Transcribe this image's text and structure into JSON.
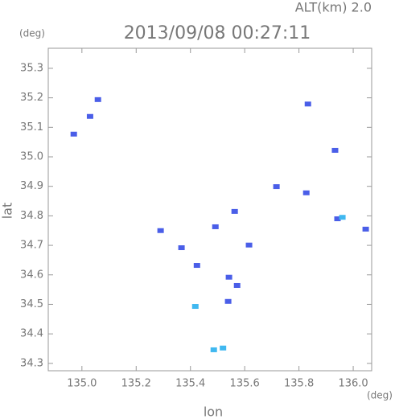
{
  "chart_data": {
    "type": "scatter",
    "title": "2013/09/08 00:27:11",
    "subtitle": "ALT(km) 2.0",
    "x_label": "lon",
    "y_label": "lat",
    "x_unit": "(deg)",
    "y_unit": "(deg)",
    "xlim": [
      134.876,
      136.068
    ],
    "ylim": [
      34.275,
      35.368
    ],
    "xticks": [
      {
        "value": 135.0,
        "label": "135.0"
      },
      {
        "value": 135.2,
        "label": "135.2"
      },
      {
        "value": 135.4,
        "label": "135.4"
      },
      {
        "value": 135.6,
        "label": "135.6"
      },
      {
        "value": 135.8,
        "label": "135.8"
      },
      {
        "value": 136.0,
        "label": "136.0"
      }
    ],
    "yticks": [
      {
        "value": 34.3,
        "label": "34.3"
      },
      {
        "value": 34.4,
        "label": "34.4"
      },
      {
        "value": 34.5,
        "label": "34.5"
      },
      {
        "value": 34.6,
        "label": "34.6"
      },
      {
        "value": 34.7,
        "label": "34.7"
      },
      {
        "value": 34.8,
        "label": "34.8"
      },
      {
        "value": 34.9,
        "label": "34.9"
      },
      {
        "value": 35.0,
        "label": "35.0"
      },
      {
        "value": 35.1,
        "label": "35.1"
      },
      {
        "value": 35.2,
        "label": "35.2"
      },
      {
        "value": 35.3,
        "label": "35.3"
      }
    ],
    "grid": false,
    "series": [
      {
        "color": "#4a5ee8",
        "x": [
          134.97,
          135.03,
          135.059,
          135.833,
          135.933,
          135.717,
          135.827,
          135.942,
          136.046,
          135.29,
          135.563,
          135.492,
          135.367,
          135.424,
          135.542,
          135.572,
          135.539,
          135.616
        ],
        "values": [
          35.077,
          35.137,
          35.194,
          35.179,
          35.022,
          34.899,
          34.878,
          34.79,
          34.755,
          34.75,
          34.815,
          34.763,
          34.692,
          34.632,
          34.592,
          34.564,
          34.51,
          34.701
        ]
      },
      {
        "color": "#40b8f0",
        "x": [
          135.418,
          135.486,
          135.52,
          135.96
        ],
        "values": [
          34.493,
          34.346,
          34.352,
          34.795
        ]
      }
    ]
  }
}
